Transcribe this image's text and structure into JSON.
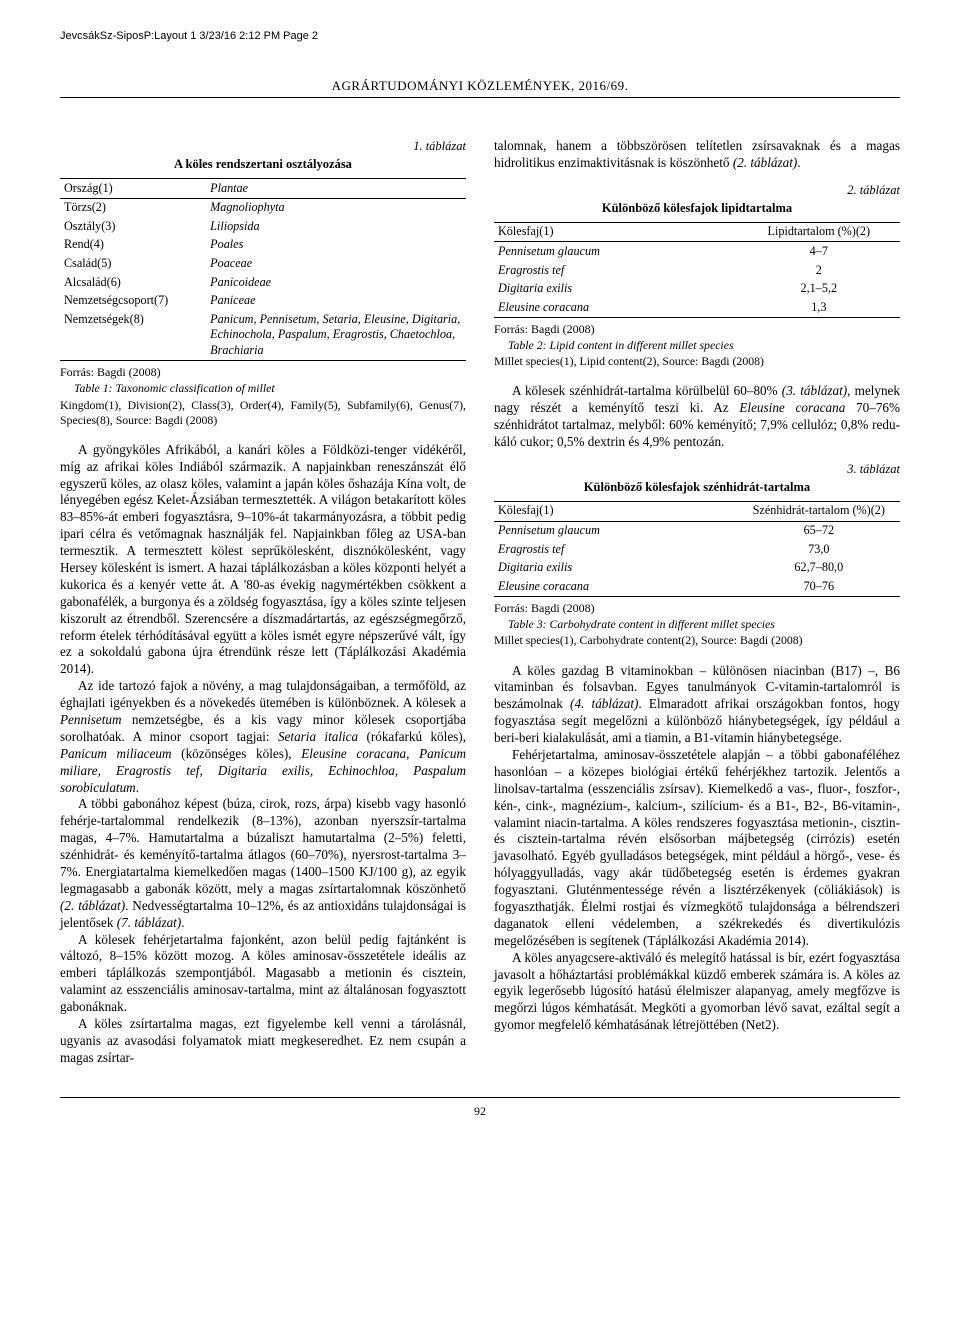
{
  "header_tag": "JevcsákSz-SiposP:Layout 1  3/23/16  2:12 PM  Page 2",
  "running_head": "AGRÁRTUDOMÁNYI KÖZLEMÉNYEK, 2016/69.",
  "page_number": "92",
  "left": {
    "table1": {
      "caption_num": "1. táblázat",
      "title": "A köles rendszertani osztályozása",
      "rows": [
        [
          "Ország(1)",
          "Plantae"
        ],
        [
          "Törzs(2)",
          "Magnoliophyta"
        ],
        [
          "Osztály(3)",
          "Liliopsida"
        ],
        [
          "Rend(4)",
          "Poales"
        ],
        [
          "Család(5)",
          "Poaceae"
        ],
        [
          "Alcsalád(6)",
          "Panicoideae"
        ],
        [
          "Nemzetségcsoport(7)",
          "Paniceae"
        ],
        [
          "Nemzetségek(8)",
          "Panicum, Pennisetum, Setaria, Eleusine, Digitaria, Echinochola, Paspalum, Eragrostis, Chaetochloa, Brachiaria"
        ]
      ],
      "source": "Forrás: Bagdi (2008)",
      "eng_title": "Table 1: Taxonomic classification of millet",
      "eng_sub": "Kingdom(1), Division(2), Class(3), Order(4), Family(5), Subfamily(6), Genus(7), Species(8), Source: Bagdi (2008)"
    },
    "para1": "A gyöngyköles Afrikából, a kanári köles a Föld­közi-tenger vidékéről, míg az afrikai köles Indiából származik. A napjainkban reneszánszát élő egyszerű köles, az olasz köles, valamint a japán köles őshazája Kína volt, de lényegében egész Kelet-Ázsiában ter­mesztették. A világon betakarított köles 83–85%-át emberi fogyasztásra, 9–10%-át takarmányozásra, a többit pedig ipari célra és vetőmagnak használják fel. Napjainkban főleg az USA-ban termesztik. A termesz­tett kölest seprűkölesként, disznókölesként, vagy Hersey kölesként is ismert. A hazai táplálkozásban a köles köz­ponti helyét a kukorica és a kenyér vette át. A '80-as évekig nagymértékben csökkent a gabonafélék, a bur­gonya és a zöldség fogyasztása, így a köles szinte tel­jesen kiszorult az étrendből. Szerencsére a díszmadár­tartás, az egészségmegőrző, reform ételek térhódításá­val együtt a köles ismét egyre népszerűvé vált, így ez a sokoldalú gabona újra étrendünk része lett (Táplál­kozási Akadémia 2014).",
    "para2_a": "Az ide tartozó fajok a növény, a mag tulajdonságai­ban, a termőföld, az éghajlati igényekben és a növeke­dés ütemében is különböznek. A kölesek a ",
    "para2_b": "Pennisetum",
    "para2_c": " nemzetségbe, és a kis vagy minor kölesek csoportjába sorolhatóak. A minor csoport tagjai: ",
    "para2_d": "Setaria italica",
    "para2_e": " (ró­kafarkú köles), ",
    "para2_f": "Panicum miliaceum",
    "para2_g": " (közönséges köles), ",
    "para2_h": "Eleusine coracana, Panicum miliare, Eragrostis tef, Digitaria exilis, Echinochloa, Paspalum sorobiculatum",
    "para2_i": ".",
    "para3_a": "A többi gabonához képest (búza, cirok, rozs, árpa) kisebb vagy hasonló fehérje-tartalommal rendelkezik (8–13%), azonban nyerszsír-tartalma magas, 4–7%. Hamutartalma a búzaliszt hamutartalma (2–5%) feletti, szénhidrát- és keményítő-tartalma átlagos (60–70%), nyersrost-tartalma 3–7%. Energiatartalma kiemelke­dően magas (1400–1500 KJ/100 g), az egyik legmaga­sabb a gabonák között, mely a magas zsírtartalomnak köszönhető ",
    "para3_b": "(2. táblázat)",
    "para3_c": ". Nedvességtartalma 10–12%, és az antioxidáns tulajdonságai is jelentősek ",
    "para3_d": "(7. táblázat)",
    "para3_e": ".",
    "para4": "A kölesek fehérjetartalma fajonként, azon belül pe­dig fajtánként is változó, 8–15% között mozog. A köles aminosav-összetétele ideális az emberi táplálkozás szem­pontjából. Magasabb a metionin és cisztein, valamint az esszenciális aminosav-tartalma, mint az általánosan fogyasztott gabonáknak.",
    "para5": "A köles zsírtartalma magas, ezt figyelembe kell venni a tárolásnál, ugyanis az avasodási folyamatok miatt megkeseredhet. Ez nem csupán a magas zsírtar-"
  },
  "right": {
    "para0_a": "talomnak, hanem a többszörösen telítetlen zsírsavak­nak és a magas hidrolitikus enzimaktivitásnak is kö­szönhető ",
    "para0_b": "(2. táblázat)",
    "para0_c": ".",
    "table2": {
      "caption_num": "2. táblázat",
      "title": "Különböző kölesfajok lipidtartalma",
      "head": [
        "Kölesfaj(1)",
        "Lipidtartalom (%)(2)"
      ],
      "rows": [
        [
          "Pennisetum glaucum",
          "4–7"
        ],
        [
          "Eragrostis tef",
          "2"
        ],
        [
          "Digitaria exilis",
          "2,1–5,2"
        ],
        [
          "Eleusine coracana",
          "1,3"
        ]
      ],
      "source": "Forrás: Bagdi (2008)",
      "eng_title": "Table 2: Lipid content in different millet species",
      "eng_sub": "Millet species(1), Lipid content(2), Source: Bagdi (2008)"
    },
    "para1_a": "A kölesek szénhidrát-tartalma körülbelül 60–80% ",
    "para1_b": "(3. táblázat)",
    "para1_c": ", melynek nagy részét a keményítő teszi ki. Az ",
    "para1_d": "Eleusine coracana",
    "para1_e": " 70–76% szénhidrátot tartalmaz, melyből: 60% keményítő; 7,9% cellulóz; 0,8% redu­káló cukor; 0,5% dextrin és 4,9% pentozán.",
    "table3": {
      "caption_num": "3. táblázat",
      "title": "Különböző kölesfajok szénhidrát-tartalma",
      "head": [
        "Kölesfaj(1)",
        "Szénhidrát-tartalom (%)(2)"
      ],
      "rows": [
        [
          "Pennisetum glaucum",
          "65–72"
        ],
        [
          "Eragrostis tef",
          "73,0"
        ],
        [
          "Digitaria exilis",
          "62,7–80,0"
        ],
        [
          "Eleusine coracana",
          "70–76"
        ]
      ],
      "source": "Forrás: Bagdi (2008)",
      "eng_title": "Table 3: Carbohydrate content in different millet species",
      "eng_sub": "Millet species(1), Carbohydrate content(2), Source: Bagdi (2008)"
    },
    "para2_a": "A köles gazdag B vitaminokban – különösen nia­cinban (B17) –, B6 vitaminban és folsavban. Egyes ta­nulmányok C-vitamin-tartalomról is beszámolnak ",
    "para2_b": "(4. táblázat)",
    "para2_c": ". Elmaradott afrikai országokban fontos, hogy fogyasztása segít megelőzni a különböző hiánybeteg­ségek, így például a beri-beri kialakulását, ami a tia­min, a B1-vitamin hiánybetegsége.",
    "para3": "Fehérjetartalma, aminosav-összetétele alapján – a többi gabonaféléhez hasonlóan – a közepes biológiai értékű fehérjékhez tartozik. Jelentős a linolsav-tartalma (esszenciális zsírsav). Kiemelkedő a vas-, fluor-, fosz­for-, kén-, cink-, magnézium-, kalcium-, szilícium- és a B1-, B2-, B6-vitamin-, valamint niacin-tartalma. A kö­les rendszeres fogyasztása metionin-, cisztin- és cisz­tein-tartalma révén elsősorban májbetegség (cirrózis) esetén javasolható. Egyéb gyulladásos betegségek, mint például a hörgő-, vese- és hólyaggyulladás, vagy akár tüdőbetegség esetén is érdemes gyakran fogyasz­tani. Gluténmentessége révén a lisztérzékenyek (cöliá­kiások) is fogyaszthatják. Élelmi rostjai és vízmegkötő tulajdonsága a bélrendszeri daganatok elleni védelem­ben, a székrekedés és divertikulózis megelőzésében is segítenek (Táplálkozási Akadémia 2014).",
    "para4": "A köles anyagcsere-aktiváló és melegítő hatással is bír, ezért fogyasztása javasolt a hőháztartási problé­mákkal küzdő emberek számára is. A köles az egyik leg­erősebb lúgosító hatású élelmiszer alapanyag, amely megfőzve is megőrzi lúgos kémhatását. Megköti a gyomorban lévő savat, ezáltal segít a gyomor megfele­lő kémhatásának létrejöttében (Net2)."
  }
}
